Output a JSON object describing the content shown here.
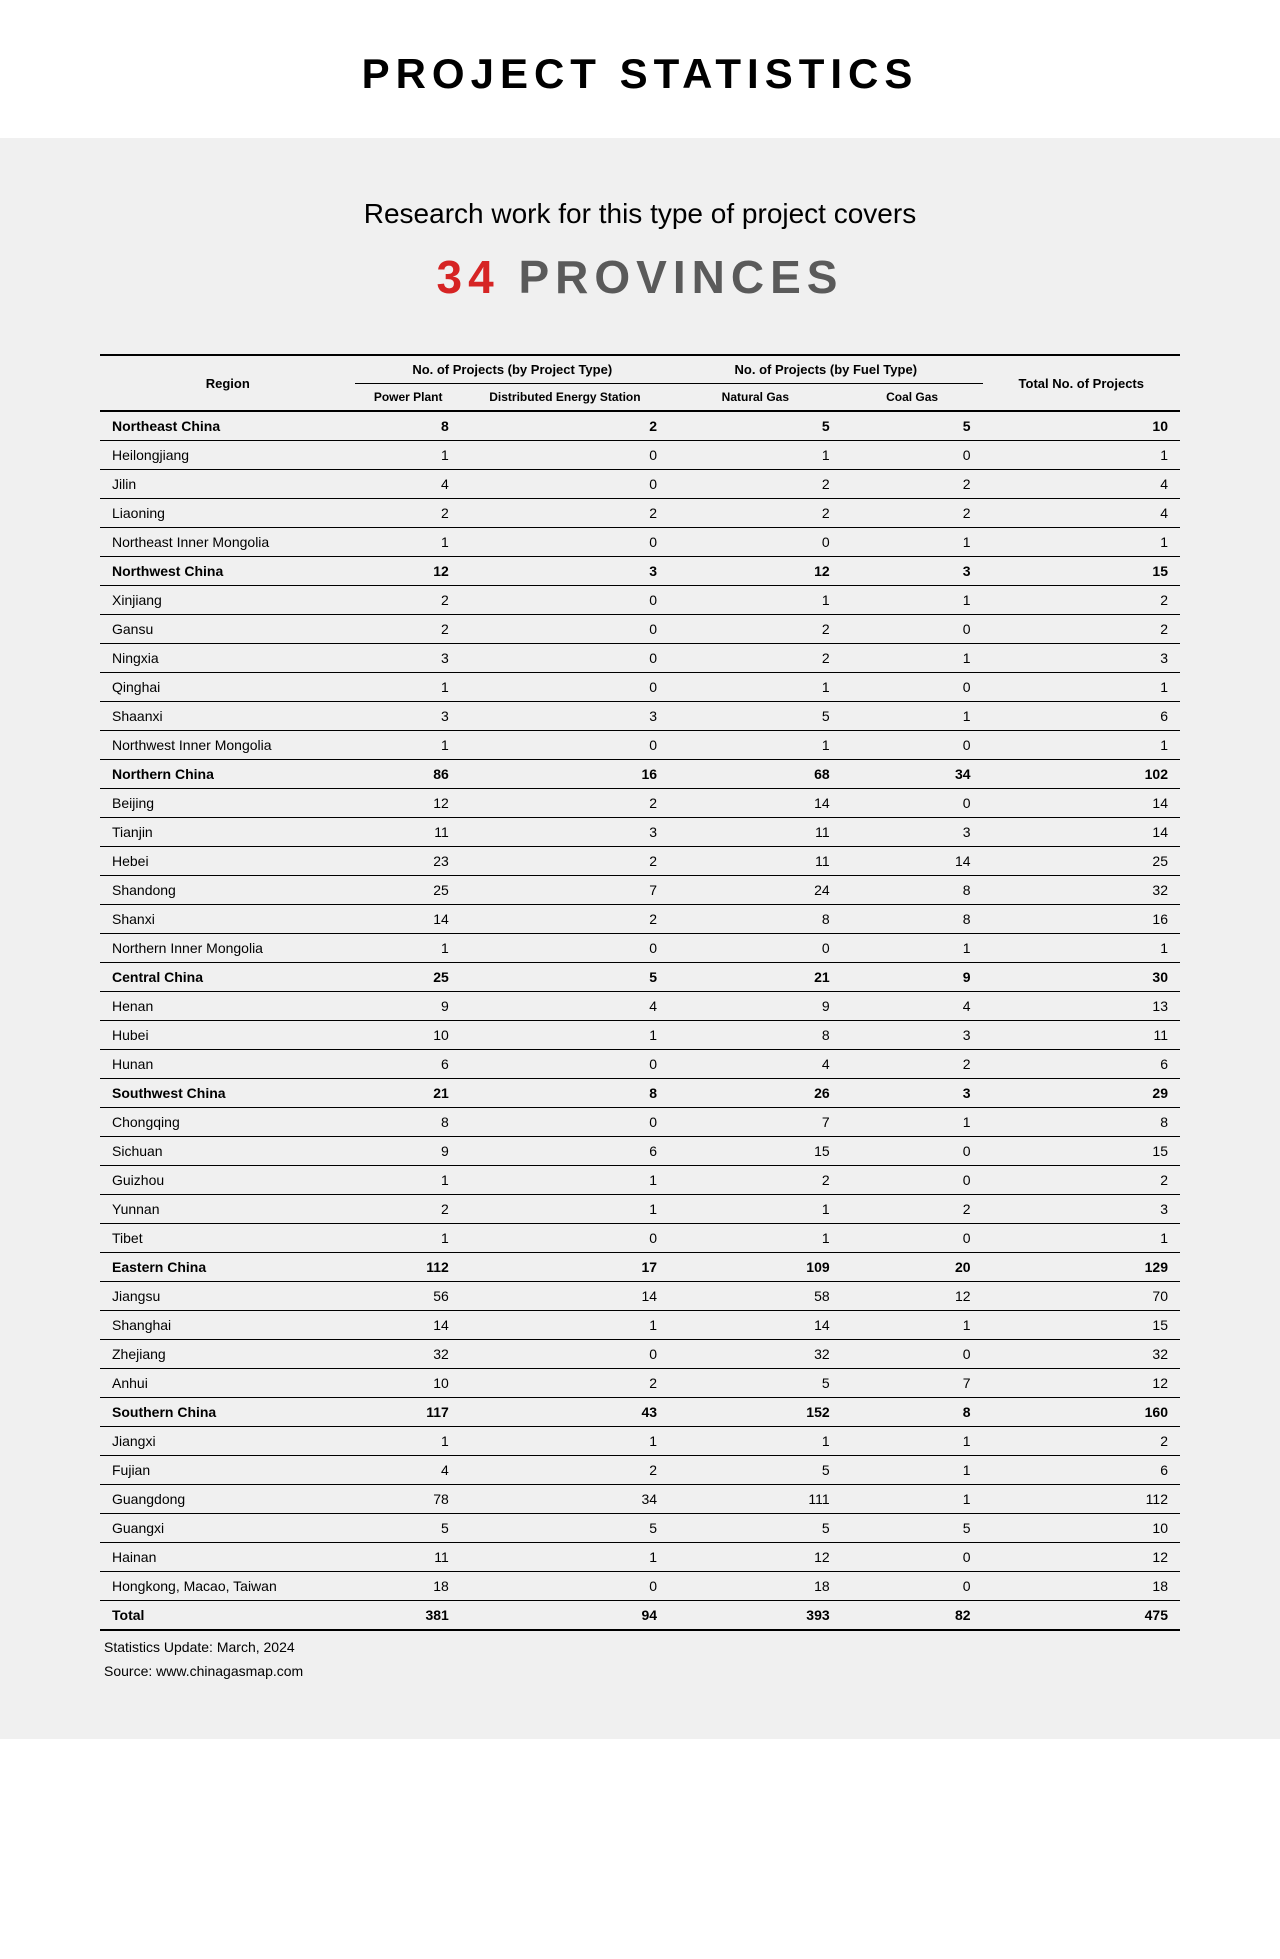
{
  "header": {
    "title": "PROJECT STATISTICS"
  },
  "intro": {
    "subtitle": "Research work for this type of project covers",
    "count": "34",
    "unit": "PROVINCES"
  },
  "table": {
    "columns": {
      "region": "Region",
      "group1": "No. of Projects (by Project Type)",
      "group2": "No. of Projects (by Fuel Type)",
      "sub1": "Power Plant",
      "sub2": "Distributed Energy Station",
      "sub3": "Natural Gas",
      "sub4": "Coal Gas",
      "total": "Total No. of Projects"
    },
    "rows": [
      {
        "region": "Northeast China",
        "c1": "8",
        "c2": "2",
        "c3": "5",
        "c4": "5",
        "total": "10",
        "header": true
      },
      {
        "region": "Heilongjiang",
        "c1": "1",
        "c2": "0",
        "c3": "1",
        "c4": "0",
        "total": "1"
      },
      {
        "region": "Jilin",
        "c1": "4",
        "c2": "0",
        "c3": "2",
        "c4": "2",
        "total": "4"
      },
      {
        "region": "Liaoning",
        "c1": "2",
        "c2": "2",
        "c3": "2",
        "c4": "2",
        "total": "4"
      },
      {
        "region": "Northeast Inner Mongolia",
        "c1": "1",
        "c2": "0",
        "c3": "0",
        "c4": "1",
        "total": "1"
      },
      {
        "region": "Northwest China",
        "c1": "12",
        "c2": "3",
        "c3": "12",
        "c4": "3",
        "total": "15",
        "header": true
      },
      {
        "region": "Xinjiang",
        "c1": "2",
        "c2": "0",
        "c3": "1",
        "c4": "1",
        "total": "2"
      },
      {
        "region": "Gansu",
        "c1": "2",
        "c2": "0",
        "c3": "2",
        "c4": "0",
        "total": "2"
      },
      {
        "region": "Ningxia",
        "c1": "3",
        "c2": "0",
        "c3": "2",
        "c4": "1",
        "total": "3"
      },
      {
        "region": "Qinghai",
        "c1": "1",
        "c2": "0",
        "c3": "1",
        "c4": "0",
        "total": "1"
      },
      {
        "region": "Shaanxi",
        "c1": "3",
        "c2": "3",
        "c3": "5",
        "c4": "1",
        "total": "6"
      },
      {
        "region": "Northwest Inner Mongolia",
        "c1": "1",
        "c2": "0",
        "c3": "1",
        "c4": "0",
        "total": "1"
      },
      {
        "region": "Northern China",
        "c1": "86",
        "c2": "16",
        "c3": "68",
        "c4": "34",
        "total": "102",
        "header": true
      },
      {
        "region": "Beijing",
        "c1": "12",
        "c2": "2",
        "c3": "14",
        "c4": "0",
        "total": "14"
      },
      {
        "region": "Tianjin",
        "c1": "11",
        "c2": "3",
        "c3": "11",
        "c4": "3",
        "total": "14"
      },
      {
        "region": "Hebei",
        "c1": "23",
        "c2": "2",
        "c3": "11",
        "c4": "14",
        "total": "25"
      },
      {
        "region": "Shandong",
        "c1": "25",
        "c2": "7",
        "c3": "24",
        "c4": "8",
        "total": "32"
      },
      {
        "region": "Shanxi",
        "c1": "14",
        "c2": "2",
        "c3": "8",
        "c4": "8",
        "total": "16"
      },
      {
        "region": "Northern Inner Mongolia",
        "c1": "1",
        "c2": "0",
        "c3": "0",
        "c4": "1",
        "total": "1"
      },
      {
        "region": "Central China",
        "c1": "25",
        "c2": "5",
        "c3": "21",
        "c4": "9",
        "total": "30",
        "header": true
      },
      {
        "region": "Henan",
        "c1": "9",
        "c2": "4",
        "c3": "9",
        "c4": "4",
        "total": "13"
      },
      {
        "region": "Hubei",
        "c1": "10",
        "c2": "1",
        "c3": "8",
        "c4": "3",
        "total": "11"
      },
      {
        "region": "Hunan",
        "c1": "6",
        "c2": "0",
        "c3": "4",
        "c4": "2",
        "total": "6"
      },
      {
        "region": "Southwest China",
        "c1": "21",
        "c2": "8",
        "c3": "26",
        "c4": "3",
        "total": "29",
        "header": true
      },
      {
        "region": "Chongqing",
        "c1": "8",
        "c2": "0",
        "c3": "7",
        "c4": "1",
        "total": "8"
      },
      {
        "region": "Sichuan",
        "c1": "9",
        "c2": "6",
        "c3": "15",
        "c4": "0",
        "total": "15"
      },
      {
        "region": "Guizhou",
        "c1": "1",
        "c2": "1",
        "c3": "2",
        "c4": "0",
        "total": "2"
      },
      {
        "region": "Yunnan",
        "c1": "2",
        "c2": "1",
        "c3": "1",
        "c4": "2",
        "total": "3"
      },
      {
        "region": "Tibet",
        "c1": "1",
        "c2": "0",
        "c3": "1",
        "c4": "0",
        "total": "1"
      },
      {
        "region": "Eastern China",
        "c1": "112",
        "c2": "17",
        "c3": "109",
        "c4": "20",
        "total": "129",
        "header": true
      },
      {
        "region": "Jiangsu",
        "c1": "56",
        "c2": "14",
        "c3": "58",
        "c4": "12",
        "total": "70"
      },
      {
        "region": "Shanghai",
        "c1": "14",
        "c2": "1",
        "c3": "14",
        "c4": "1",
        "total": "15"
      },
      {
        "region": "Zhejiang",
        "c1": "32",
        "c2": "0",
        "c3": "32",
        "c4": "0",
        "total": "32"
      },
      {
        "region": "Anhui",
        "c1": "10",
        "c2": "2",
        "c3": "5",
        "c4": "7",
        "total": "12"
      },
      {
        "region": "Southern China",
        "c1": "117",
        "c2": "43",
        "c3": "152",
        "c4": "8",
        "total": "160",
        "header": true
      },
      {
        "region": "Jiangxi",
        "c1": "1",
        "c2": "1",
        "c3": "1",
        "c4": "1",
        "total": "2"
      },
      {
        "region": "Fujian",
        "c1": "4",
        "c2": "2",
        "c3": "5",
        "c4": "1",
        "total": "6"
      },
      {
        "region": "Guangdong",
        "c1": "78",
        "c2": "34",
        "c3": "111",
        "c4": "1",
        "total": "112"
      },
      {
        "region": "Guangxi",
        "c1": "5",
        "c2": "5",
        "c3": "5",
        "c4": "5",
        "total": "10"
      },
      {
        "region": "Hainan",
        "c1": "11",
        "c2": "1",
        "c3": "12",
        "c4": "0",
        "total": "12"
      },
      {
        "region": "Hongkong, Macao, Taiwan",
        "c1": "18",
        "c2": "0",
        "c3": "18",
        "c4": "0",
        "total": "18"
      },
      {
        "region": "Total",
        "c1": "381",
        "c2": "94",
        "c3": "393",
        "c4": "82",
        "total": "475",
        "totalRow": true
      }
    ]
  },
  "footer": {
    "update": "Statistics Update: March, 2024",
    "source": "Source: www.chinagasmap.com"
  },
  "style": {
    "accent_color": "#d62424",
    "background_color": "#f0f0f0",
    "text_color": "#000000",
    "muted_color": "#5a5a5a",
    "title_fontsize": 42,
    "subtitle_fontsize": 28,
    "province_fontsize": 46,
    "table_fontsize": 14
  }
}
